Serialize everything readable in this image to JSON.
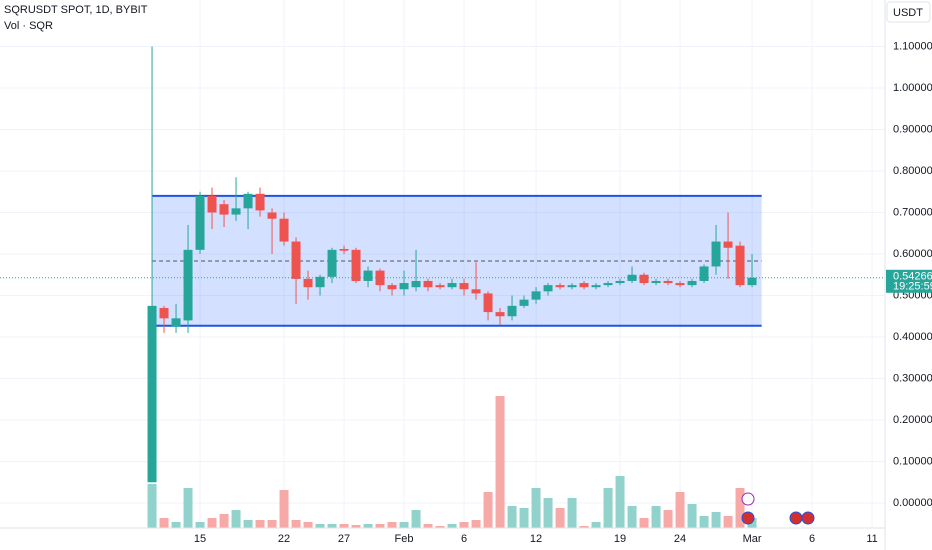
{
  "header": {
    "symbol": "SQRUSDT SPOT, 1D, BYBIT",
    "volume_label": "Vol · SQR",
    "currency": "USDT"
  },
  "chart_data": {
    "type": "candlestick",
    "x": [
      0,
      1,
      2,
      3,
      4,
      5,
      6,
      7,
      8,
      9,
      10,
      11,
      12,
      13,
      14,
      15,
      16,
      17,
      18,
      19,
      20,
      21,
      22,
      23,
      24,
      25,
      26,
      27,
      28,
      29,
      30,
      31,
      32,
      33,
      34,
      35,
      36,
      37,
      38,
      39,
      40,
      41,
      42,
      43,
      44,
      45,
      46,
      47,
      48,
      49,
      50
    ],
    "open": [
      0.05,
      0.47,
      0.425,
      0.44,
      0.61,
      0.74,
      0.72,
      0.695,
      0.71,
      0.745,
      0.7,
      0.685,
      0.63,
      0.54,
      0.52,
      0.545,
      0.612,
      0.61,
      0.535,
      0.56,
      0.525,
      0.515,
      0.52,
      0.535,
      0.525,
      0.52,
      0.53,
      0.515,
      0.505,
      0.46,
      0.45,
      0.475,
      0.49,
      0.51,
      0.525,
      0.52,
      0.53,
      0.52,
      0.525,
      0.53,
      0.535,
      0.55,
      0.53,
      0.535,
      0.53,
      0.525,
      0.535,
      0.57,
      0.63,
      0.62,
      0.525
    ],
    "high": [
      1.1,
      0.475,
      0.48,
      0.67,
      0.75,
      0.76,
      0.73,
      0.785,
      0.75,
      0.76,
      0.71,
      0.7,
      0.64,
      0.56,
      0.55,
      0.615,
      0.62,
      0.615,
      0.57,
      0.565,
      0.53,
      0.56,
      0.61,
      0.54,
      0.53,
      0.54,
      0.54,
      0.58,
      0.51,
      0.47,
      0.5,
      0.5,
      0.52,
      0.53,
      0.53,
      0.53,
      0.535,
      0.53,
      0.535,
      0.54,
      0.57,
      0.555,
      0.54,
      0.54,
      0.535,
      0.54,
      0.575,
      0.67,
      0.7,
      0.63,
      0.6
    ],
    "low": [
      0.05,
      0.41,
      0.41,
      0.41,
      0.6,
      0.66,
      0.665,
      0.68,
      0.66,
      0.69,
      0.6,
      0.62,
      0.48,
      0.49,
      0.5,
      0.53,
      0.6,
      0.53,
      0.52,
      0.51,
      0.5,
      0.5,
      0.51,
      0.51,
      0.515,
      0.515,
      0.5,
      0.49,
      0.44,
      0.43,
      0.44,
      0.47,
      0.48,
      0.5,
      0.515,
      0.515,
      0.515,
      0.515,
      0.52,
      0.525,
      0.53,
      0.525,
      0.525,
      0.525,
      0.52,
      0.52,
      0.53,
      0.55,
      0.54,
      0.52,
      0.52
    ],
    "close": [
      0.475,
      0.445,
      0.445,
      0.61,
      0.74,
      0.7,
      0.695,
      0.71,
      0.745,
      0.705,
      0.685,
      0.63,
      0.54,
      0.52,
      0.545,
      0.61,
      0.608,
      0.535,
      0.56,
      0.525,
      0.515,
      0.53,
      0.535,
      0.52,
      0.52,
      0.53,
      0.515,
      0.505,
      0.46,
      0.45,
      0.475,
      0.49,
      0.51,
      0.525,
      0.52,
      0.525,
      0.52,
      0.525,
      0.53,
      0.535,
      0.55,
      0.53,
      0.535,
      0.53,
      0.525,
      0.535,
      0.57,
      0.63,
      0.615,
      0.525,
      0.5427
    ],
    "volume": [
      44,
      10,
      6,
      40,
      6,
      10,
      14,
      18,
      8,
      8,
      8,
      38,
      8,
      6,
      4,
      4,
      4,
      3,
      4,
      4,
      6,
      6,
      18,
      4,
      2,
      4,
      6,
      8,
      36,
      132,
      22,
      20,
      40,
      30,
      20,
      30,
      2,
      6,
      40,
      52,
      22,
      10,
      22,
      18,
      36,
      24,
      12,
      16,
      12,
      40,
      10
    ],
    "volume_ylim": [
      0,
      528
    ],
    "up_color": "#26a69a",
    "down_color": "#ef5350",
    "up_volume_color": "#92d2cc",
    "down_volume_color": "#f7a9a7",
    "ylim": [
      -0.0602,
      1.212
    ],
    "yticks": [
      {
        "value": 1.1,
        "label": "1.10000"
      },
      {
        "value": 1.0,
        "label": "1.00000"
      },
      {
        "value": 0.9,
        "label": "0.90000"
      },
      {
        "value": 0.8,
        "label": "0.80000"
      },
      {
        "value": 0.7,
        "label": "0.70000"
      },
      {
        "value": 0.6,
        "label": "0.60000"
      },
      {
        "value": 0.5,
        "label": "0.50000"
      },
      {
        "value": 0.4,
        "label": "0.40000"
      },
      {
        "value": 0.3,
        "label": "0.30000"
      },
      {
        "value": 0.2,
        "label": "0.20000"
      },
      {
        "value": 0.1,
        "label": "0.10000"
      },
      {
        "value": 0.0,
        "label": "0.00000"
      }
    ],
    "xlim": [
      -12.67,
      61.08
    ],
    "xticks": [
      {
        "value": 4,
        "label": "15"
      },
      {
        "value": 11,
        "label": "22"
      },
      {
        "value": 16,
        "label": "27"
      },
      {
        "value": 21,
        "label": "Feb"
      },
      {
        "value": 26,
        "label": "6"
      },
      {
        "value": 32,
        "label": "12"
      },
      {
        "value": 39,
        "label": "19"
      },
      {
        "value": 44,
        "label": "24"
      },
      {
        "value": 50,
        "label": "Mar"
      },
      {
        "value": 55,
        "label": "6"
      },
      {
        "value": 60,
        "label": "11"
      }
    ],
    "grid": true,
    "rectangle": {
      "top": 0.74,
      "bottom": 0.427,
      "middle": 0.583,
      "x_start": 0,
      "x_end": 50.8
    },
    "last_price": {
      "value": 0.54266,
      "label": "0.54266",
      "countdown": "19:25:59"
    }
  }
}
